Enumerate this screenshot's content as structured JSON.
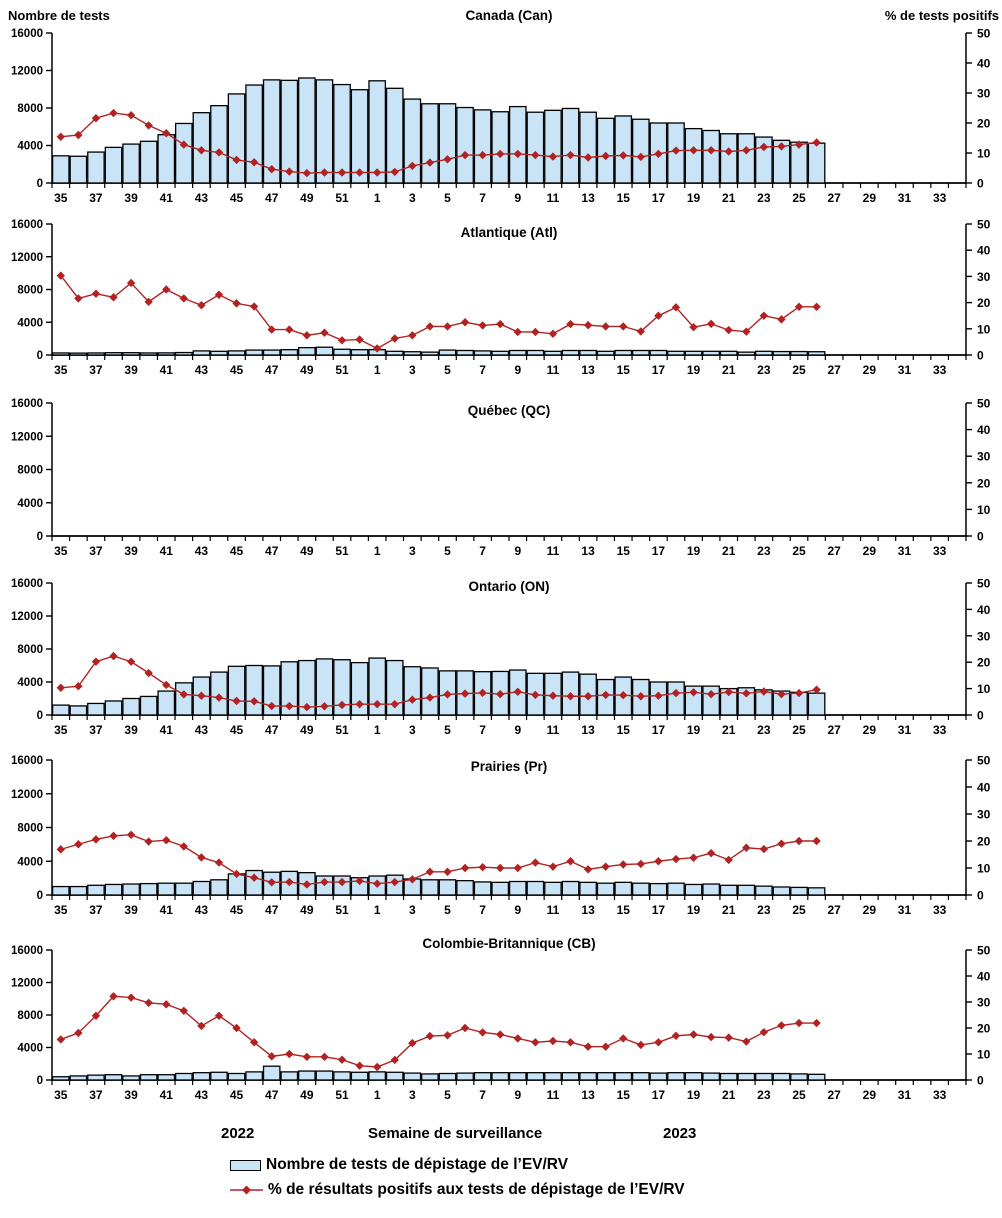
{
  "header": {
    "left_axis_title": "Nombre de tests",
    "right_axis_title": "% de tests positifs"
  },
  "footer": {
    "year_left": "2022",
    "x_axis_title": "Semaine de surveillance",
    "year_right": "2023"
  },
  "legend": {
    "items": [
      {
        "marker": "bar-swatch",
        "label": "Nombre de tests de dépistage de l’EV/RV"
      },
      {
        "marker": "line-diamond-swatch",
        "label": "% de résultats positifs aux tests de dépistage de l’EV/RV"
      }
    ]
  },
  "colors": {
    "bar_fill": "#C9E4F7",
    "bar_stroke": "#000000",
    "line": "#B22222",
    "text": "#000000"
  },
  "axes": {
    "x_weeks": [
      35,
      36,
      37,
      38,
      39,
      40,
      41,
      42,
      43,
      44,
      45,
      46,
      47,
      48,
      49,
      50,
      51,
      52,
      1,
      2,
      3,
      4,
      5,
      6,
      7,
      8,
      9,
      10,
      11,
      12,
      13,
      14,
      15,
      16,
      17,
      18,
      19,
      20,
      21,
      22,
      23,
      24,
      25,
      26
    ],
    "x_tick_labels": [
      35,
      37,
      39,
      41,
      43,
      45,
      47,
      49,
      51,
      1,
      3,
      5,
      7,
      9,
      11,
      13,
      15,
      17,
      19,
      21,
      23,
      25,
      27,
      29,
      31,
      33
    ],
    "x_axis_total_weeks": 52,
    "y_left": {
      "title": "Nombre de tests",
      "ticks": [
        0,
        4000,
        8000,
        12000,
        16000
      ],
      "max": 16000
    },
    "y_right": {
      "title": "% de tests positifs",
      "ticks": [
        0,
        10,
        20,
        30,
        40,
        50
      ],
      "max": 50
    }
  },
  "chart_data": [
    {
      "type": "bar",
      "title": "Canada (Can)",
      "xlabel": "Semaine de surveillance",
      "ylabel": "Nombre de tests",
      "ylabel_right": "% de tests positifs",
      "ylim_left": [
        0,
        16000
      ],
      "ylim_right": [
        0,
        50
      ],
      "series": [
        {
          "name": "Nombre de tests de dépistage de l’EV/RV",
          "type": "bar",
          "axis": "left",
          "values": [
            2900,
            2850,
            3300,
            3800,
            4150,
            4450,
            5150,
            6350,
            7500,
            8250,
            9500,
            10450,
            11000,
            10950,
            11200,
            11000,
            10500,
            9950,
            10900,
            10100,
            8950,
            8450,
            8450,
            8050,
            7800,
            7600,
            8150,
            7550,
            7750,
            7950,
            7550,
            6900,
            7150,
            6800,
            6400,
            6400,
            5800,
            5600,
            5250,
            5250,
            4900,
            4550,
            4350,
            4250
          ]
        },
        {
          "name": "% de résultats positifs aux tests de dépistage de l’EV/RV",
          "type": "line",
          "axis": "right",
          "values": [
            15.4,
            16.0,
            21.6,
            23.3,
            22.6,
            19.2,
            16.6,
            12.8,
            10.9,
            10.2,
            7.7,
            6.9,
            4.6,
            3.8,
            3.3,
            3.5,
            3.5,
            3.5,
            3.5,
            3.7,
            5.7,
            6.8,
            7.9,
            9.3,
            9.3,
            9.7,
            9.7,
            9.3,
            8.8,
            9.3,
            8.5,
            9.0,
            9.2,
            8.7,
            9.7,
            10.8,
            10.9,
            10.9,
            10.5,
            10.9,
            12.0,
            12.2,
            12.8,
            13.5
          ]
        }
      ]
    },
    {
      "type": "bar",
      "title": "Atlantique (Atl)",
      "xlabel": "Semaine de surveillance",
      "ylabel": "Nombre de tests",
      "ylabel_right": "% de tests positifs",
      "ylim_left": [
        0,
        16000
      ],
      "ylim_right": [
        0,
        50
      ],
      "series": [
        {
          "name": "Nombre de tests de dépistage de l’EV/RV",
          "type": "bar",
          "axis": "left",
          "values": [
            250,
            230,
            250,
            280,
            280,
            250,
            260,
            300,
            500,
            450,
            500,
            600,
            600,
            650,
            900,
            950,
            700,
            650,
            650,
            450,
            400,
            350,
            600,
            550,
            500,
            450,
            550,
            550,
            450,
            550,
            550,
            450,
            550,
            550,
            550,
            450,
            450,
            450,
            450,
            350,
            450,
            420,
            420,
            400
          ]
        },
        {
          "name": "% de résultats positifs aux tests de dépistage de l’EV/RV",
          "type": "line",
          "axis": "right",
          "values": [
            30.3,
            21.6,
            23.4,
            22.0,
            27.5,
            20.3,
            25.0,
            21.6,
            19.0,
            23.0,
            19.7,
            18.5,
            9.7,
            9.7,
            7.5,
            8.5,
            5.6,
            5.9,
            2.5,
            6.3,
            7.5,
            10.9,
            10.9,
            12.5,
            11.3,
            11.8,
            8.8,
            8.8,
            8.1,
            11.8,
            11.4,
            10.9,
            10.9,
            9.0,
            15.0,
            18.2,
            10.6,
            11.9,
            9.5,
            8.9,
            15.0,
            13.6,
            18.4,
            18.4
          ]
        }
      ]
    },
    {
      "type": "bar",
      "title": "Québec (QC)",
      "xlabel": "Semaine de surveillance",
      "ylabel": "Nombre de tests",
      "ylabel_right": "% de tests positifs",
      "ylim_left": [
        0,
        16000
      ],
      "ylim_right": [
        0,
        50
      ],
      "series": [
        {
          "name": "Nombre de tests de dépistage de l’EV/RV",
          "type": "bar",
          "axis": "left",
          "values": []
        },
        {
          "name": "% de résultats positifs aux tests de dépistage de l’EV/RV",
          "type": "line",
          "axis": "right",
          "values": []
        }
      ]
    },
    {
      "type": "bar",
      "title": "Ontario (ON)",
      "xlabel": "Semaine de surveillance",
      "ylabel": "Nombre de tests",
      "ylabel_right": "% de tests positifs",
      "ylim_left": [
        0,
        16000
      ],
      "ylim_right": [
        0,
        50
      ],
      "series": [
        {
          "name": "Nombre de tests de dépistage de l’EV/RV",
          "type": "bar",
          "axis": "left",
          "values": [
            1200,
            1100,
            1400,
            1700,
            2000,
            2250,
            2900,
            3900,
            4600,
            5200,
            5900,
            6000,
            5950,
            6450,
            6600,
            6800,
            6700,
            6350,
            6900,
            6600,
            5850,
            5700,
            5350,
            5350,
            5250,
            5280,
            5450,
            5050,
            5050,
            5200,
            4950,
            4300,
            4600,
            4300,
            4000,
            4000,
            3500,
            3500,
            3200,
            3300,
            3050,
            2900,
            2750,
            2650
          ]
        },
        {
          "name": "% de résultats positifs aux tests de dépistage de l’EV/RV",
          "type": "line",
          "axis": "right",
          "values": [
            10.3,
            10.9,
            20.2,
            22.3,
            20.2,
            15.9,
            11.4,
            7.8,
            7.3,
            6.6,
            5.3,
            5.2,
            3.4,
            3.4,
            3.0,
            3.3,
            3.8,
            4.1,
            4.1,
            4.1,
            5.8,
            6.6,
            7.8,
            8.1,
            8.4,
            7.9,
            8.8,
            7.6,
            7.3,
            7.1,
            7.1,
            7.6,
            7.5,
            7.1,
            7.3,
            8.3,
            8.6,
            7.9,
            8.7,
            8.2,
            8.9,
            7.9,
            8.3,
            9.6
          ]
        }
      ]
    },
    {
      "type": "bar",
      "title": "Prairies (Pr)",
      "xlabel": "Semaine de surveillance",
      "ylabel": "Nombre de tests",
      "ylabel_right": "% de tests positifs",
      "ylim_left": [
        0,
        16000
      ],
      "ylim_right": [
        0,
        50
      ],
      "series": [
        {
          "name": "Nombre de tests de dépistage de l’EV/RV",
          "type": "bar",
          "axis": "left",
          "values": [
            1000,
            1000,
            1150,
            1250,
            1300,
            1350,
            1400,
            1400,
            1600,
            1800,
            2500,
            2900,
            2700,
            2800,
            2650,
            2250,
            2250,
            2050,
            2250,
            2350,
            1900,
            1800,
            1800,
            1700,
            1550,
            1500,
            1600,
            1600,
            1500,
            1600,
            1500,
            1400,
            1500,
            1400,
            1350,
            1400,
            1250,
            1300,
            1150,
            1150,
            1050,
            950,
            900,
            850
          ]
        },
        {
          "name": "% de résultats positifs aux tests de dépistage de l’EV/RV",
          "type": "line",
          "axis": "right",
          "values": [
            16.9,
            18.8,
            20.6,
            21.9,
            22.3,
            19.8,
            20.3,
            18.0,
            13.9,
            12.0,
            7.8,
            6.4,
            4.7,
            4.8,
            3.9,
            4.8,
            4.8,
            5.2,
            4.2,
            4.8,
            5.8,
            8.6,
            8.6,
            10.0,
            10.3,
            10.0,
            10.0,
            12.0,
            10.5,
            12.5,
            9.5,
            10.5,
            11.3,
            11.5,
            12.5,
            13.3,
            13.8,
            15.5,
            13.0,
            17.5,
            17.0,
            19.0,
            20.0,
            20.0
          ]
        }
      ]
    },
    {
      "type": "bar",
      "title": "Colombie-Britannique (CB)",
      "xlabel": "Semaine de surveillance",
      "ylabel": "Nombre de tests",
      "ylabel_right": "% de tests positifs",
      "ylim_left": [
        0,
        16000
      ],
      "ylim_right": [
        0,
        50
      ],
      "series": [
        {
          "name": "Nombre de tests de dépistage de l’EV/RV",
          "type": "bar",
          "axis": "left",
          "values": [
            400,
            500,
            600,
            650,
            500,
            650,
            650,
            800,
            900,
            950,
            800,
            1000,
            1700,
            1000,
            1100,
            1100,
            1000,
            950,
            1000,
            950,
            850,
            750,
            800,
            850,
            900,
            900,
            900,
            900,
            900,
            900,
            900,
            900,
            900,
            900,
            850,
            900,
            900,
            850,
            800,
            800,
            800,
            800,
            750,
            700
          ]
        },
        {
          "name": "% de résultats positifs aux tests de dépistage de l’EV/RV",
          "type": "line",
          "axis": "right",
          "values": [
            15.6,
            18.1,
            24.7,
            32.2,
            31.7,
            29.7,
            29.1,
            26.6,
            20.8,
            24.7,
            20.0,
            14.5,
            9.1,
            10.0,
            8.9,
            8.9,
            7.8,
            5.5,
            5.0,
            7.7,
            14.2,
            16.9,
            17.2,
            20.0,
            18.3,
            17.5,
            16.0,
            14.5,
            15.0,
            14.5,
            12.8,
            12.8,
            16.0,
            13.5,
            14.5,
            17.0,
            17.5,
            16.5,
            16.3,
            14.8,
            18.4,
            21.0,
            21.9,
            21.9
          ]
        }
      ]
    }
  ]
}
